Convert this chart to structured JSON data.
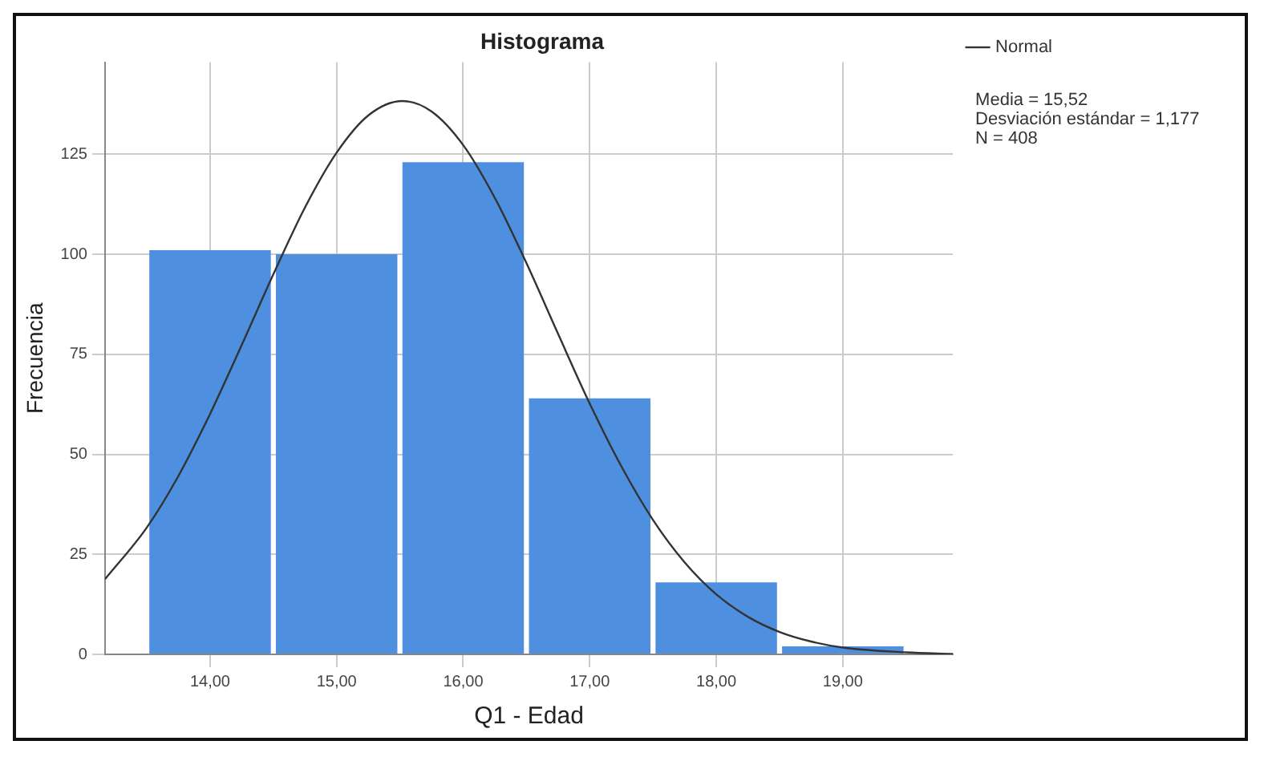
{
  "chart_data": {
    "type": "histogram",
    "title": "Histograma",
    "xlabel": "Q1 - Edad",
    "ylabel": "Frecuencia",
    "bins": [
      13.5,
      14.5,
      15.5,
      16.5,
      17.5,
      18.5,
      19.5
    ],
    "values": [
      101,
      100,
      123,
      64,
      18,
      2
    ],
    "color": "#4f8fe0",
    "series": [
      {
        "name": "Normal",
        "type": "line",
        "color": "#333333",
        "x": [
          13.17,
          13.5,
          13.75,
          14,
          14.25,
          14.5,
          14.75,
          15,
          15.25,
          15.52,
          15.75,
          16,
          16.25,
          16.5,
          16.75,
          17,
          17.25,
          17.5,
          17.75,
          18,
          18.25,
          18.5,
          18.75,
          19,
          19.5,
          19.87
        ],
        "values": [
          18.8,
          31.7,
          44.6,
          60.1,
          77.3,
          95,
          111.7,
          125.4,
          134.7,
          138.3,
          135.7,
          127.3,
          114.1,
          97.8,
          80.1,
          62.7,
          47,
          33.6,
          23,
          15,
          9.4,
          5.6,
          3.2,
          1.7,
          0.5,
          0.1
        ]
      }
    ],
    "xlim": [
      13.17,
      19.87
    ],
    "xticks": [
      {
        "value": 14,
        "label": "14,00"
      },
      {
        "value": 15,
        "label": "15,00"
      },
      {
        "value": 16,
        "label": "16,00"
      },
      {
        "value": 17,
        "label": "17,00"
      },
      {
        "value": 18,
        "label": "18,00"
      },
      {
        "value": 19,
        "label": "19,00"
      }
    ],
    "ylim": [
      0,
      148
    ],
    "yticks": [
      0,
      25,
      50,
      75,
      100,
      125
    ],
    "grid": true,
    "legend": "top right",
    "annotations": [
      "Media = 15,52",
      "Desviación estándar = 1,177",
      "N = 408"
    ]
  }
}
